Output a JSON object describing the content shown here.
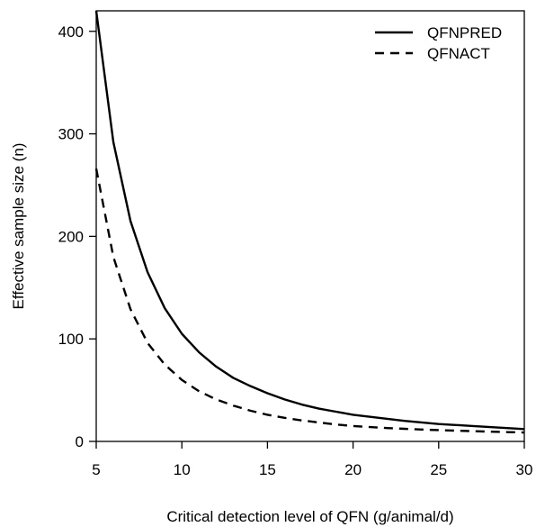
{
  "chart_data": {
    "type": "line",
    "title": "",
    "xlabel": "Critical detection level of QFN (g/animal/d)",
    "ylabel": "Effective sample size (n)",
    "xlim": [
      5,
      30
    ],
    "ylim": [
      0,
      420
    ],
    "xticks": [
      5,
      10,
      15,
      20,
      25,
      30
    ],
    "yticks": [
      0,
      100,
      200,
      300,
      400
    ],
    "grid": false,
    "legend_position": "top-right",
    "x": [
      5,
      6,
      7,
      8,
      9,
      10,
      11,
      12,
      13,
      14,
      15,
      16,
      17,
      18,
      19,
      20,
      21,
      22,
      23,
      24,
      25,
      26,
      27,
      28,
      29,
      30
    ],
    "series": [
      {
        "name": "QFNPRED",
        "style": "solid",
        "color": "#000000",
        "values": [
          420,
          292,
          215,
          165,
          130,
          105,
          87,
          73,
          62,
          54,
          47,
          41,
          36,
          32,
          29,
          26,
          24,
          22,
          20,
          18.5,
          17,
          16,
          15,
          14,
          13,
          12
        ]
      },
      {
        "name": "QFNACT",
        "style": "dashed",
        "color": "#000000",
        "values": [
          266,
          180,
          129,
          96,
          75,
          60,
          49,
          41,
          35,
          30,
          26,
          23,
          20.5,
          18.5,
          16.5,
          15,
          14,
          13,
          12.3,
          11.6,
          11,
          10.5,
          10,
          9.5,
          9.1,
          8.7
        ]
      }
    ]
  }
}
